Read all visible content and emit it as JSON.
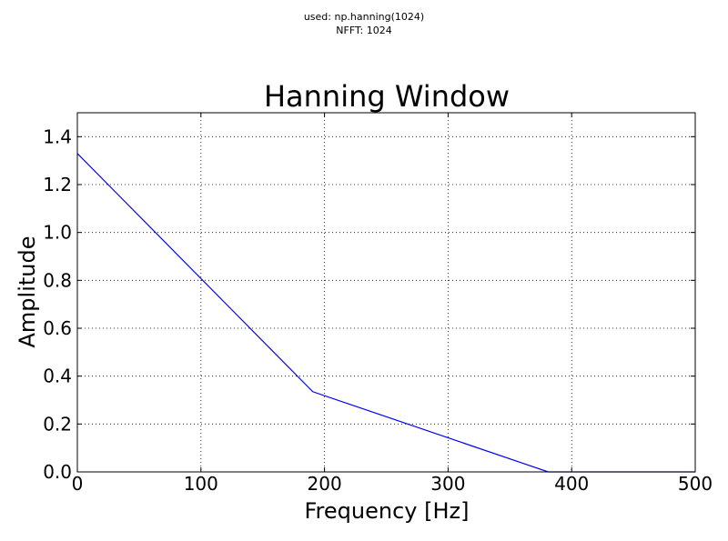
{
  "figure": {
    "suptitle_line1": "used: np.hanning(1024)",
    "suptitle_line2": "NFFT: 1024"
  },
  "chart_data": {
    "type": "line",
    "title": "Hanning Window",
    "xlabel": "Frequency [Hz]",
    "ylabel": "Amplitude",
    "xlim": [
      0,
      500
    ],
    "ylim": [
      0,
      1.5
    ],
    "grid": true,
    "x_ticks": [
      "0",
      "100",
      "200",
      "300",
      "400",
      "500"
    ],
    "y_ticks": [
      "0.0",
      "0.2",
      "0.4",
      "0.6",
      "0.8",
      "1.0",
      "1.2",
      "1.4"
    ],
    "series": [
      {
        "color": "#0000ff",
        "x": [
          0,
          190.5,
          381,
          500
        ],
        "y": [
          1.33,
          0.335,
          0.0,
          0.0
        ]
      }
    ]
  }
}
